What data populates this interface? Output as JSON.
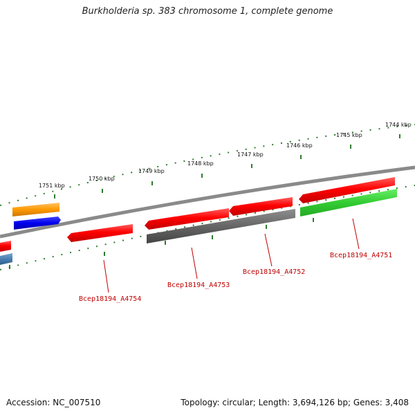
{
  "title": "Burkholderia sp. 383 chromosome 1, complete genome",
  "footer": {
    "accession": "Accession: NC_007510",
    "summary": "Topology: circular; Length: 3,694,126 bp; Genes: 3,408"
  },
  "colors": {
    "backbone": "#8a8a8a",
    "tick": "#2e7d2e",
    "label": "#c00000",
    "forward_gene": "#ff0000",
    "reverse_gene": "#ff0000",
    "pseudo_gene": "#666666",
    "rna_gene": "#33cc33",
    "orange_gene": "#ff9900",
    "blue_gene": "#0000ee",
    "steel_gene": "#4a7fb0"
  },
  "scale_labels": [
    "1751 kbp",
    "1750 kbp",
    "1749 kbp",
    "1748 kbp",
    "1747 kbp",
    "1746 kbp",
    "1745 kbp",
    "1744 kbp"
  ],
  "gene_labels": [
    "Bcep18194_A4754",
    "Bcep18194_A4753",
    "Bcep18194_A4752",
    "Bcep18194_A4751"
  ]
}
